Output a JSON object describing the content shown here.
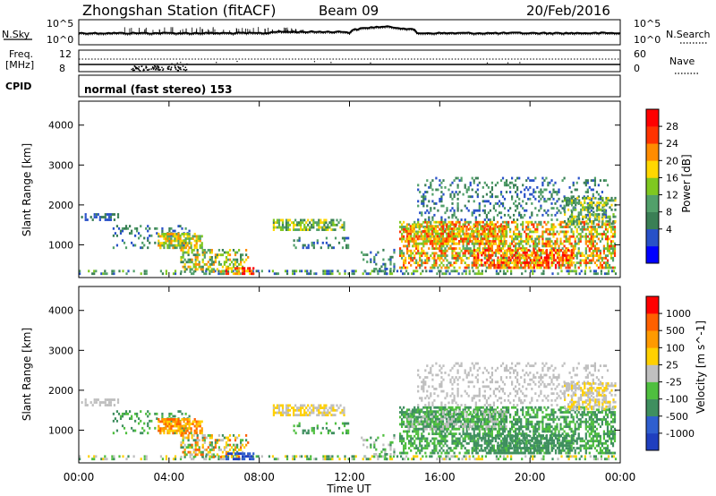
{
  "header": {
    "station": "Zhongshan Station (fitACF)",
    "beam": "Beam 09",
    "date": "20/Feb/2016"
  },
  "noise_panel": {
    "left_label": "N.Sky",
    "left_ticks": [
      "10^5",
      "10^0"
    ],
    "right_ticks": [
      "10^5",
      "10^0"
    ],
    "right_label": "N.Search"
  },
  "freq_panel": {
    "left_label_1": "Freq.",
    "left_label_2": "[MHz]",
    "left_ticks": [
      "12",
      "8"
    ],
    "right_ticks": [
      "60",
      "0"
    ],
    "right_label": "Nave"
  },
  "cpid": {
    "label": "CPID",
    "text": "normal (fast stereo) 153"
  },
  "x_axis": {
    "label": "Time UT",
    "ticks": [
      "00:00",
      "04:00",
      "08:00",
      "12:00",
      "16:00",
      "20:00",
      "00:00"
    ]
  },
  "chart_data": [
    {
      "type": "heatmap",
      "name": "Power",
      "ylabel": "Slant Range [km]",
      "yticks": [
        "4000",
        "3000",
        "2000",
        "1000"
      ],
      "ylim": [
        180,
        4600
      ],
      "xlim_hours": [
        0,
        24
      ],
      "colorbar": {
        "label": "Power [dB]",
        "ticks": [
          "28",
          "24",
          "20",
          "16",
          "12",
          "8",
          "4"
        ],
        "colors": [
          "#0000ff",
          "#2851c8",
          "#3a7f55",
          "#52a06a",
          "#7fc820",
          "#ffd700",
          "#ff8c00",
          "#ff3300",
          "#ff0000"
        ]
      }
    },
    {
      "type": "heatmap",
      "name": "Velocity",
      "ylabel": "Slant Range [km]",
      "yticks": [
        "4000",
        "3000",
        "2000",
        "1000"
      ],
      "ylim": [
        180,
        4600
      ],
      "xlim_hours": [
        0,
        24
      ],
      "colorbar": {
        "label": "Velocity [m s^-1]",
        "ticks": [
          "1000",
          "500",
          "100",
          "25",
          "-25",
          "-100",
          "-500",
          "-1000"
        ],
        "colors": [
          "#1f3fbf",
          "#2f5fcf",
          "#3f8f5f",
          "#4fbf3f",
          "#bfbfbf",
          "#ffd000",
          "#ff9a00",
          "#ff6000",
          "#ff0000"
        ]
      }
    }
  ]
}
